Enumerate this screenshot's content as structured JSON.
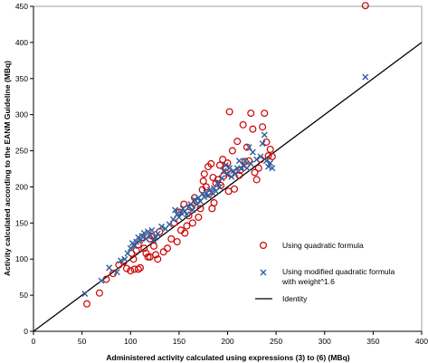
{
  "chart_data": {
    "type": "scatter",
    "xlabel": "Administered activity calculated using expressions (3) to (6) (MBq)",
    "ylabel": "Activity calculated according to the EANM Guideline (MBq)",
    "xlim": [
      0,
      400
    ],
    "ylim": [
      0,
      450
    ],
    "xticks": [
      "0",
      "50",
      "100",
      "150",
      "200",
      "250",
      "300",
      "350",
      "400"
    ],
    "yticks": [
      "0",
      "50",
      "100",
      "150",
      "200",
      "250",
      "300",
      "350",
      "400",
      "450"
    ],
    "grid": false,
    "legend_position": "bottom-right",
    "series": [
      {
        "name": "Using quadratic formula",
        "marker": "circle",
        "color": "#cc0000",
        "points": [
          [
            55,
            38
          ],
          [
            68,
            53
          ],
          [
            75,
            72
          ],
          [
            82,
            80
          ],
          [
            88,
            92
          ],
          [
            93,
            96
          ],
          [
            96,
            87
          ],
          [
            100,
            84
          ],
          [
            101,
            108
          ],
          [
            103,
            100
          ],
          [
            104,
            86
          ],
          [
            106,
            112
          ],
          [
            108,
            120
          ],
          [
            108,
            86
          ],
          [
            110,
            88
          ],
          [
            112,
            130
          ],
          [
            114,
            115
          ],
          [
            116,
            108
          ],
          [
            118,
            103
          ],
          [
            120,
            128
          ],
          [
            120,
            103
          ],
          [
            122,
            132
          ],
          [
            124,
            118
          ],
          [
            126,
            106
          ],
          [
            128,
            100
          ],
          [
            130,
            138
          ],
          [
            134,
            110
          ],
          [
            138,
            115
          ],
          [
            142,
            128
          ],
          [
            145,
            150
          ],
          [
            148,
            124
          ],
          [
            150,
            165
          ],
          [
            152,
            140
          ],
          [
            155,
            176
          ],
          [
            156,
            136
          ],
          [
            158,
            146
          ],
          [
            160,
            160
          ],
          [
            162,
            172
          ],
          [
            164,
            150
          ],
          [
            166,
            185
          ],
          [
            168,
            180
          ],
          [
            170,
            158
          ],
          [
            172,
            170
          ],
          [
            174,
            196
          ],
          [
            175,
            208
          ],
          [
            176,
            218
          ],
          [
            178,
            200
          ],
          [
            180,
            228
          ],
          [
            181,
            190
          ],
          [
            183,
            232
          ],
          [
            184,
            170
          ],
          [
            185,
            213
          ],
          [
            186,
            178
          ],
          [
            188,
            205
          ],
          [
            190,
            210
          ],
          [
            192,
            230
          ],
          [
            193,
            202
          ],
          [
            195,
            238
          ],
          [
            196,
            215
          ],
          [
            198,
            227
          ],
          [
            200,
            233
          ],
          [
            201,
            194
          ],
          [
            202,
            304
          ],
          [
            203,
            218
          ],
          [
            205,
            250
          ],
          [
            207,
            197
          ],
          [
            210,
            263
          ],
          [
            212,
            216
          ],
          [
            213,
            223
          ],
          [
            216,
            286
          ],
          [
            218,
            235
          ],
          [
            220,
            255
          ],
          [
            222,
            236
          ],
          [
            224,
            302
          ],
          [
            226,
            280
          ],
          [
            228,
            220
          ],
          [
            230,
            210
          ],
          [
            232,
            226
          ],
          [
            234,
            238
          ],
          [
            236,
            283
          ],
          [
            238,
            302
          ],
          [
            240,
            262
          ],
          [
            242,
            243
          ],
          [
            244,
            252
          ],
          [
            246,
            242
          ],
          [
            342,
            451
          ]
        ]
      },
      {
        "name": "Using modified quadratic formula with weight^1.6",
        "marker": "x",
        "color": "#2e5f9e",
        "points": [
          [
            53,
            52
          ],
          [
            70,
            70
          ],
          [
            78,
            88
          ],
          [
            86,
            82
          ],
          [
            90,
            98
          ],
          [
            94,
            100
          ],
          [
            97,
            108
          ],
          [
            100,
            115
          ],
          [
            102,
            122
          ],
          [
            104,
            118
          ],
          [
            106,
            124
          ],
          [
            108,
            130
          ],
          [
            110,
            126
          ],
          [
            112,
            132
          ],
          [
            114,
            136
          ],
          [
            116,
            128
          ],
          [
            118,
            138
          ],
          [
            120,
            132
          ],
          [
            122,
            140
          ],
          [
            124,
            126
          ],
          [
            126,
            130
          ],
          [
            128,
            135
          ],
          [
            132,
            145
          ],
          [
            136,
            142
          ],
          [
            140,
            148
          ],
          [
            144,
            155
          ],
          [
            146,
            168
          ],
          [
            148,
            162
          ],
          [
            150,
            158
          ],
          [
            152,
            164
          ],
          [
            154,
            170
          ],
          [
            156,
            166
          ],
          [
            158,
            162
          ],
          [
            160,
            172
          ],
          [
            162,
            176
          ],
          [
            164,
            168
          ],
          [
            166,
            182
          ],
          [
            168,
            176
          ],
          [
            170,
            185
          ],
          [
            172,
            180
          ],
          [
            174,
            190
          ],
          [
            176,
            186
          ],
          [
            178,
            192
          ],
          [
            180,
            188
          ],
          [
            182,
            196
          ],
          [
            184,
            192
          ],
          [
            186,
            198
          ],
          [
            188,
            194
          ],
          [
            190,
            206
          ],
          [
            192,
            200
          ],
          [
            194,
            212
          ],
          [
            196,
            222
          ],
          [
            198,
            230
          ],
          [
            200,
            218
          ],
          [
            202,
            226
          ],
          [
            204,
            214
          ],
          [
            206,
            222
          ],
          [
            208,
            218
          ],
          [
            210,
            226
          ],
          [
            212,
            236
          ],
          [
            214,
            225
          ],
          [
            216,
            230
          ],
          [
            218,
            236
          ],
          [
            220,
            226
          ],
          [
            222,
            255
          ],
          [
            224,
            232
          ],
          [
            226,
            248
          ],
          [
            230,
            238
          ],
          [
            234,
            242
          ],
          [
            236,
            260
          ],
          [
            238,
            272
          ],
          [
            240,
            236
          ],
          [
            242,
            228
          ],
          [
            244,
            233
          ],
          [
            246,
            226
          ],
          [
            342,
            352
          ]
        ]
      },
      {
        "name": "Identity",
        "marker": "line",
        "color": "#000000",
        "points": [
          [
            0,
            0
          ],
          [
            400,
            400
          ]
        ]
      }
    ]
  }
}
